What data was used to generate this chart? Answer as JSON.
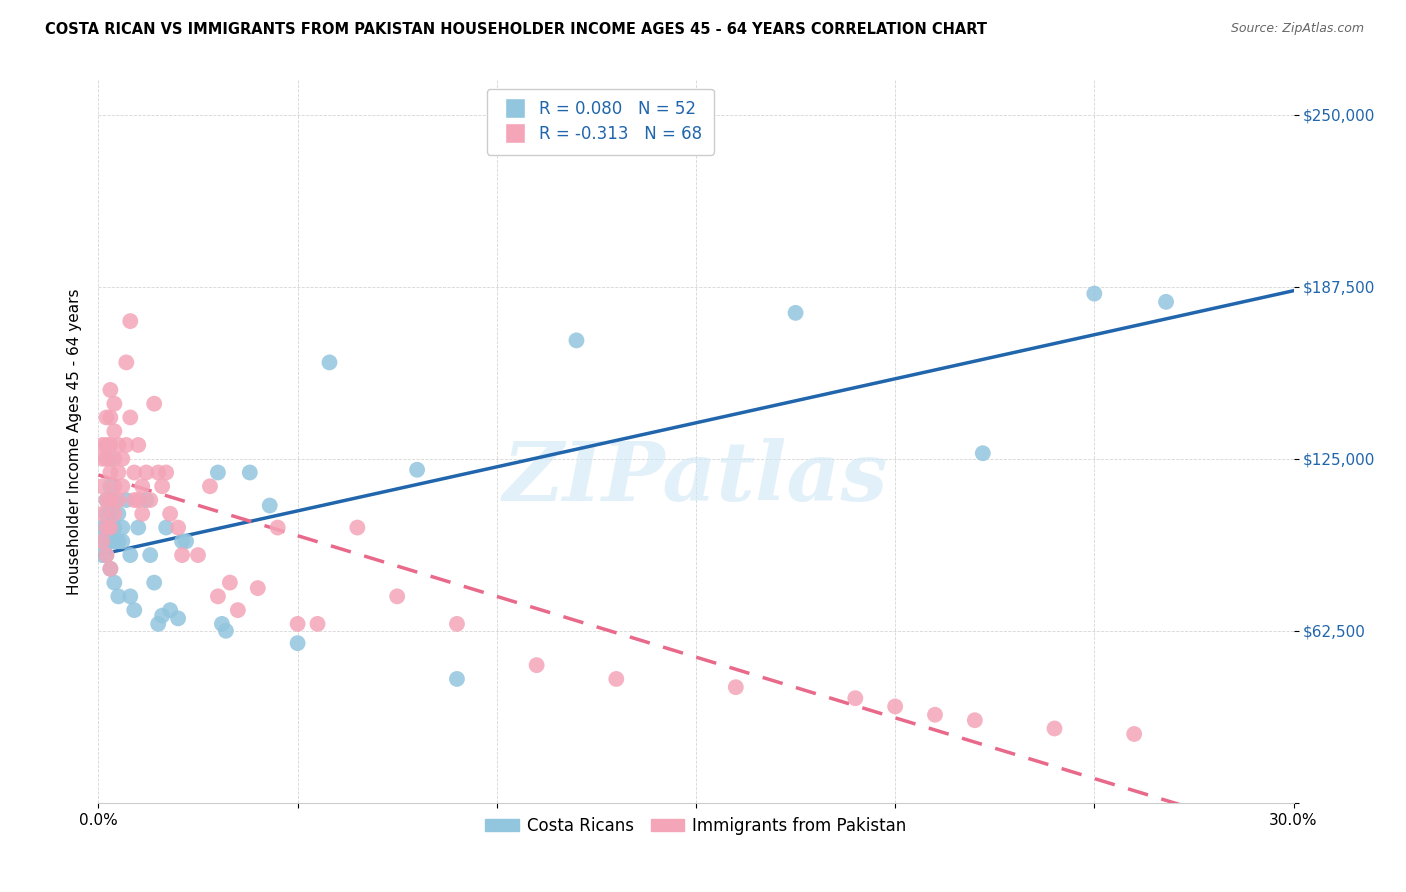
{
  "title": "COSTA RICAN VS IMMIGRANTS FROM PAKISTAN HOUSEHOLDER INCOME AGES 45 - 64 YEARS CORRELATION CHART",
  "source": "Source: ZipAtlas.com",
  "ylabel": "Householder Income Ages 45 - 64 years",
  "xlim": [
    0.0,
    0.3
  ],
  "ylim": [
    0,
    262500
  ],
  "yticks": [
    0,
    62500,
    125000,
    187500,
    250000
  ],
  "ytick_labels": [
    "",
    "$62,500",
    "$125,000",
    "$187,500",
    "$250,000"
  ],
  "xticks": [
    0.0,
    0.05,
    0.1,
    0.15,
    0.2,
    0.25,
    0.3
  ],
  "xtick_labels": [
    "0.0%",
    "",
    "",
    "",
    "",
    "",
    "30.0%"
  ],
  "blue_color": "#92c5de",
  "pink_color": "#f4a5b8",
  "blue_line_color": "#2166ac",
  "pink_line_color": "#e8698a",
  "blue_R": 0.08,
  "blue_N": 52,
  "pink_R": -0.313,
  "pink_N": 68,
  "watermark": "ZIPatlas",
  "legend_label_blue": "Costa Ricans",
  "legend_label_pink": "Immigrants from Pakistan",
  "blue_x": [
    0.001,
    0.001,
    0.001,
    0.002,
    0.002,
    0.002,
    0.002,
    0.002,
    0.003,
    0.003,
    0.003,
    0.003,
    0.003,
    0.003,
    0.004,
    0.004,
    0.004,
    0.004,
    0.005,
    0.005,
    0.005,
    0.006,
    0.006,
    0.007,
    0.008,
    0.008,
    0.009,
    0.01,
    0.012,
    0.013,
    0.014,
    0.015,
    0.016,
    0.017,
    0.018,
    0.02,
    0.021,
    0.022,
    0.03,
    0.031,
    0.032,
    0.038,
    0.043,
    0.05,
    0.058,
    0.08,
    0.09,
    0.12,
    0.175,
    0.222,
    0.25,
    0.268
  ],
  "blue_y": [
    100000,
    95000,
    90000,
    105000,
    100000,
    95000,
    110000,
    90000,
    125000,
    115000,
    105000,
    100000,
    95000,
    85000,
    110000,
    100000,
    95000,
    80000,
    105000,
    95000,
    75000,
    100000,
    95000,
    110000,
    90000,
    75000,
    70000,
    100000,
    110000,
    90000,
    80000,
    65000,
    68000,
    100000,
    70000,
    67000,
    95000,
    95000,
    120000,
    65000,
    62500,
    120000,
    108000,
    58000,
    160000,
    121000,
    45000,
    168000,
    178000,
    127000,
    185000,
    182000
  ],
  "pink_x": [
    0.001,
    0.001,
    0.001,
    0.001,
    0.001,
    0.002,
    0.002,
    0.002,
    0.002,
    0.002,
    0.002,
    0.003,
    0.003,
    0.003,
    0.003,
    0.003,
    0.003,
    0.003,
    0.004,
    0.004,
    0.004,
    0.004,
    0.004,
    0.005,
    0.005,
    0.005,
    0.006,
    0.006,
    0.007,
    0.007,
    0.008,
    0.008,
    0.009,
    0.009,
    0.01,
    0.01,
    0.011,
    0.011,
    0.012,
    0.013,
    0.014,
    0.015,
    0.016,
    0.017,
    0.018,
    0.02,
    0.021,
    0.025,
    0.028,
    0.03,
    0.033,
    0.035,
    0.04,
    0.045,
    0.05,
    0.055,
    0.065,
    0.075,
    0.09,
    0.11,
    0.13,
    0.16,
    0.19,
    0.2,
    0.21,
    0.22,
    0.24,
    0.26
  ],
  "pink_y": [
    130000,
    125000,
    115000,
    105000,
    95000,
    140000,
    130000,
    125000,
    110000,
    100000,
    90000,
    150000,
    140000,
    130000,
    120000,
    110000,
    100000,
    85000,
    145000,
    135000,
    125000,
    115000,
    105000,
    130000,
    120000,
    110000,
    125000,
    115000,
    160000,
    130000,
    175000,
    140000,
    120000,
    110000,
    130000,
    110000,
    115000,
    105000,
    120000,
    110000,
    145000,
    120000,
    115000,
    120000,
    105000,
    100000,
    90000,
    90000,
    115000,
    75000,
    80000,
    70000,
    78000,
    100000,
    65000,
    65000,
    100000,
    75000,
    65000,
    50000,
    45000,
    42000,
    38000,
    35000,
    32000,
    30000,
    27000,
    25000
  ]
}
